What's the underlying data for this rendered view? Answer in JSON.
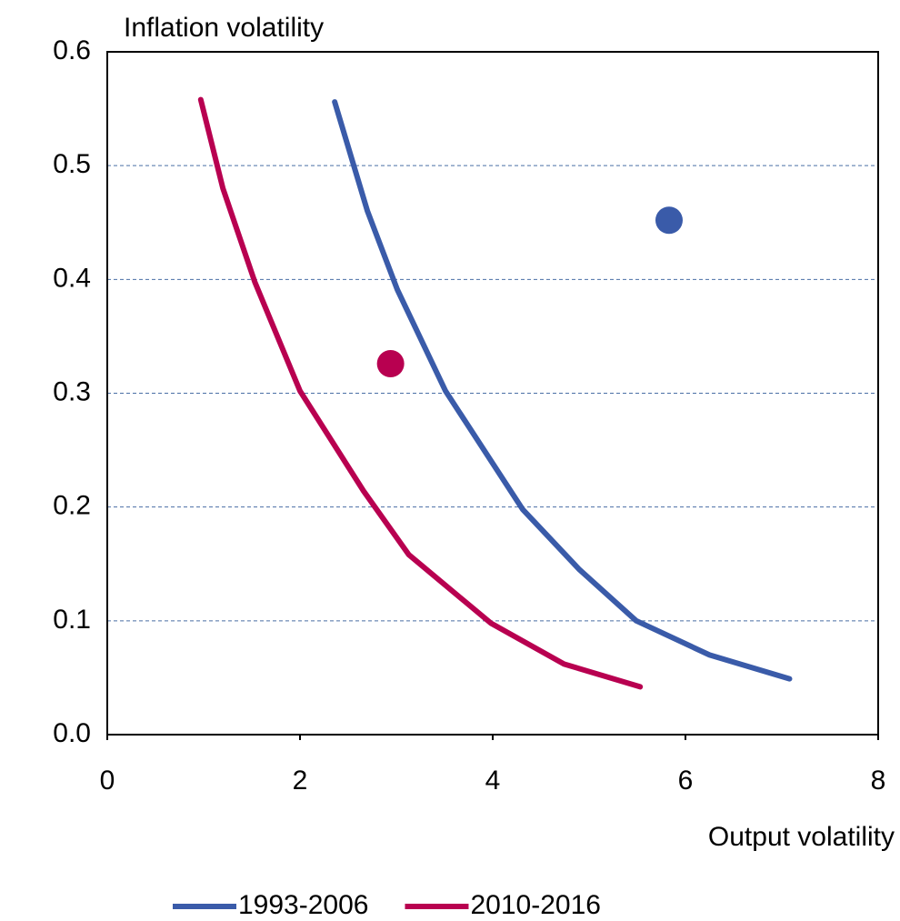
{
  "chart_data": {
    "type": "line",
    "y_label": "Inflation volatility",
    "x_label": "Output volatility",
    "xlim": [
      0,
      8
    ],
    "xticks": [
      0,
      2,
      4,
      6,
      8
    ],
    "ylim": [
      0,
      0.6
    ],
    "yticks": [
      {
        "value": 0,
        "label": "0.0"
      },
      0.1,
      0.2,
      0.3,
      0.4,
      0.5,
      0.6
    ],
    "grid": true,
    "legend": "bottom",
    "series": [
      {
        "name": "1993-2006",
        "color": "#3a5ba9",
        "x": [
          2.36,
          2.7,
          3.01,
          3.51,
          4.31,
          4.9,
          5.49,
          6.25,
          7.08
        ],
        "values": [
          0.556,
          0.46,
          0.391,
          0.302,
          0.198,
          0.145,
          0.1,
          0.07,
          0.049
        ]
      },
      {
        "name": "2010-2016",
        "color": "#b80050",
        "x": [
          0.97,
          1.2,
          1.53,
          2.0,
          2.66,
          3.13,
          3.98,
          4.74,
          5.53
        ],
        "values": [
          0.558,
          0.48,
          0.398,
          0.302,
          0.214,
          0.158,
          0.098,
          0.062,
          0.042
        ]
      }
    ],
    "points": [
      {
        "x": 5.83,
        "y": 0.452,
        "color": "#3a5ba9"
      },
      {
        "x": 2.94,
        "y": 0.326,
        "color": "#b80050"
      }
    ]
  }
}
